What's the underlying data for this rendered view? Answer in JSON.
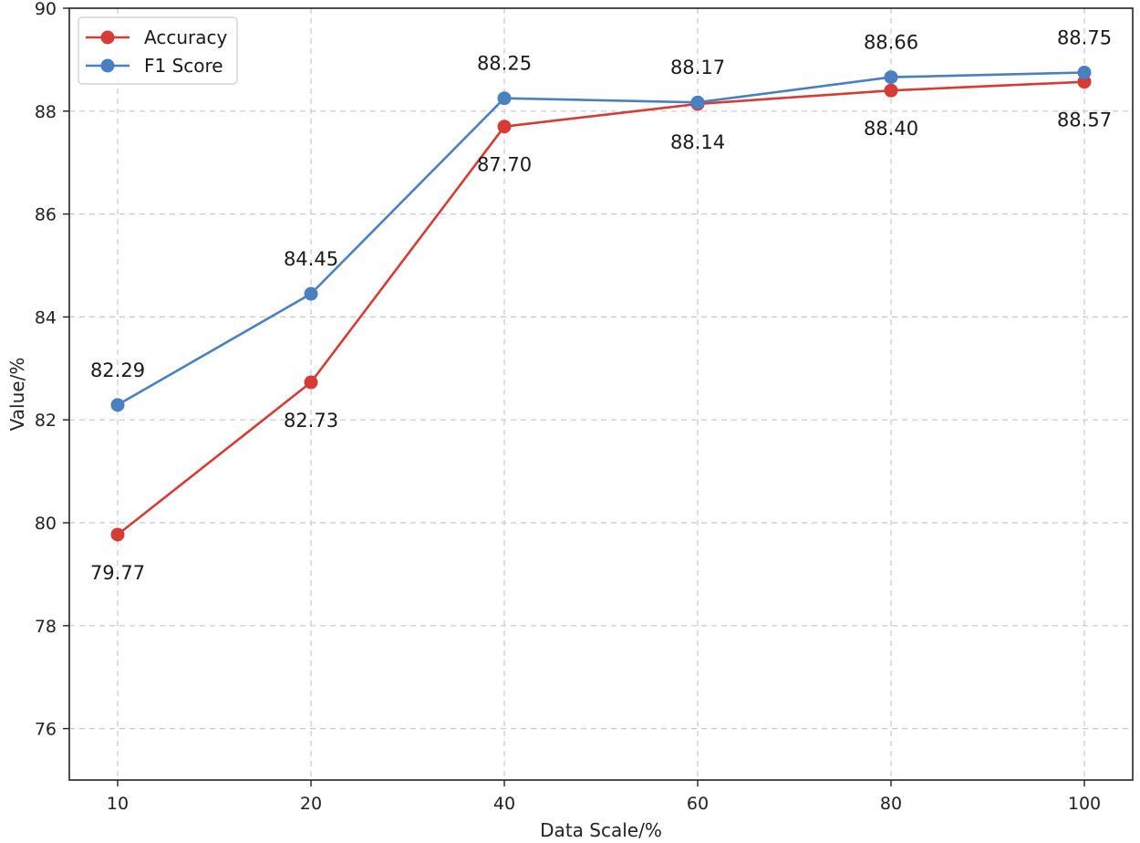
{
  "chart_data": {
    "type": "line",
    "title": "",
    "xlabel": "Data Scale/%",
    "ylabel": "Value/%",
    "categories": [
      "10",
      "20",
      "40",
      "60",
      "80",
      "100"
    ],
    "ylim": [
      75,
      90
    ],
    "yticks": [
      76,
      78,
      80,
      82,
      84,
      86,
      88,
      90
    ],
    "grid": true,
    "legend_position": "top-left",
    "series": [
      {
        "name": "Accuracy",
        "color": "#d63c36",
        "values": [
          79.77,
          82.73,
          87.7,
          88.14,
          88.4,
          88.57
        ],
        "labels": [
          "79.77",
          "82.73",
          "87.70",
          "88.14",
          "88.40",
          "88.57"
        ],
        "label_placement": "below"
      },
      {
        "name": "F1 Score",
        "color": "#4a7fc0",
        "values": [
          82.29,
          84.45,
          88.25,
          88.17,
          88.66,
          88.75
        ],
        "labels": [
          "82.29",
          "84.45",
          "88.25",
          "88.17",
          "88.66",
          "88.75"
        ],
        "label_placement": "above"
      }
    ]
  }
}
